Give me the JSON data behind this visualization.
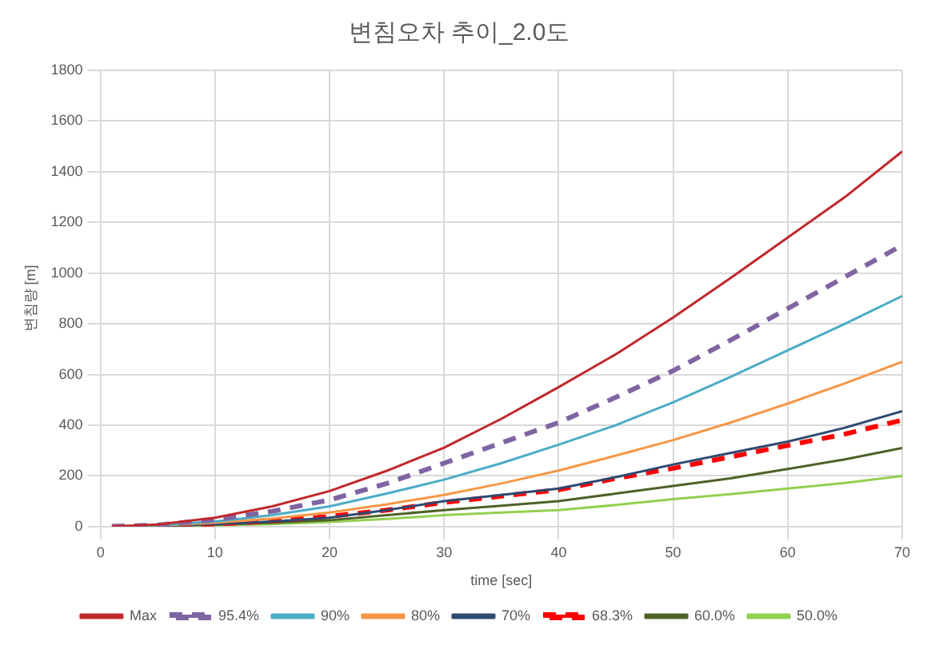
{
  "chart_data": {
    "type": "line",
    "title": "변침오차 추이_2.0도",
    "xlabel": "time [sec]",
    "ylabel": "변침량 [m]",
    "x": [
      1,
      5,
      10,
      15,
      20,
      25,
      30,
      35,
      40,
      45,
      50,
      55,
      60,
      65,
      70
    ],
    "xlim": [
      0,
      70
    ],
    "xticks": [
      0,
      10,
      20,
      30,
      40,
      50,
      60,
      70
    ],
    "ylim": [
      0,
      1800
    ],
    "yticks": [
      0,
      200,
      400,
      600,
      800,
      1000,
      1200,
      1400,
      1600,
      1800
    ],
    "grid": true,
    "legend": "bottom",
    "marker": "none",
    "series": [
      {
        "name": "Max",
        "color": "#c0282b",
        "line_style": "solid",
        "values": [
          0,
          8,
          35,
          80,
          140,
          220,
          311,
          425,
          550,
          680,
          825,
          980,
          1140,
          1300,
          1480
        ]
      },
      {
        "name": "95.4%",
        "color": "#8064a2",
        "line_style": "dashed",
        "values": [
          0,
          6,
          28,
          60,
          105,
          170,
          250,
          330,
          410,
          510,
          615,
          735,
          860,
          985,
          1110
        ]
      },
      {
        "name": "90%",
        "color": "#4bacc6",
        "line_style": "solid",
        "values": [
          0,
          5,
          20,
          45,
          80,
          130,
          185,
          250,
          323,
          400,
          490,
          590,
          695,
          800,
          910
        ]
      },
      {
        "name": "80%",
        "color": "#f79646",
        "line_style": "solid",
        "values": [
          0,
          4,
          15,
          32,
          55,
          88,
          125,
          170,
          221,
          280,
          341,
          410,
          485,
          565,
          650
        ]
      },
      {
        "name": "70%",
        "color": "#2e4a72",
        "line_style": "solid",
        "values": [
          0,
          3,
          10,
          20,
          35,
          65,
          100,
          125,
          150,
          195,
          245,
          290,
          335,
          390,
          455
        ]
      },
      {
        "name": "68.3%",
        "color": "#ff0000",
        "line_style": "dashed",
        "values": [
          0,
          3,
          10,
          22,
          40,
          65,
          95,
          120,
          145,
          190,
          230,
          275,
          320,
          365,
          420
        ]
      },
      {
        "name": "60.0%",
        "color": "#4f6228",
        "line_style": "solid",
        "values": [
          0,
          2,
          7,
          15,
          25,
          45,
          65,
          82,
          100,
          130,
          160,
          190,
          227,
          265,
          310
        ]
      },
      {
        "name": "50.0%",
        "color": "#92d050",
        "line_style": "solid",
        "values": [
          0,
          1,
          5,
          10,
          18,
          30,
          45,
          55,
          65,
          85,
          108,
          128,
          150,
          172,
          200
        ]
      }
    ]
  }
}
